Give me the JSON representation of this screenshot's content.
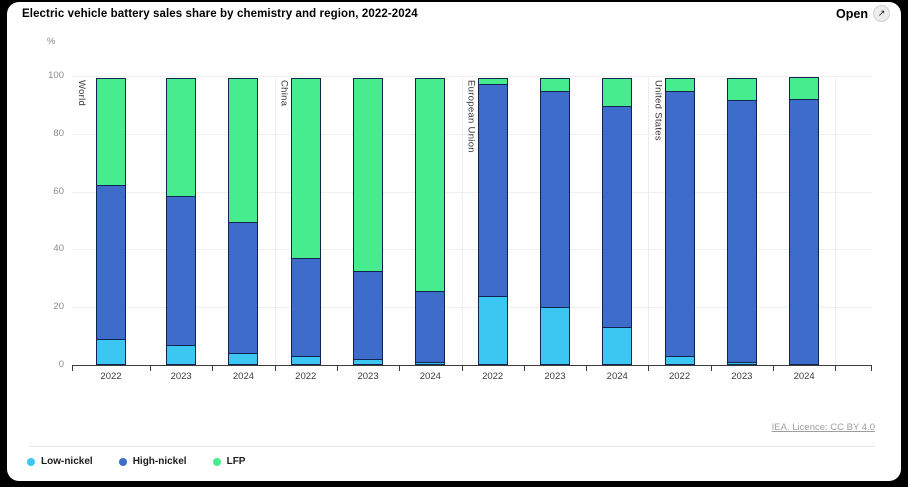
{
  "header": {
    "title": "Electric vehicle battery sales share by chemistry and region, 2022-2024",
    "open_label": "Open",
    "open_icon": "↗"
  },
  "chart_data": {
    "type": "bar",
    "stacked": true,
    "unit": "%",
    "ylim": [
      0,
      100
    ],
    "yticks": [
      0,
      20,
      40,
      60,
      80,
      100
    ],
    "grid": true,
    "legend_position": "bottom-left",
    "groups": [
      "World",
      "China",
      "European Union",
      "United States"
    ],
    "categories": [
      "2022",
      "2023",
      "2024",
      "2022",
      "2023",
      "2024",
      "2022",
      "2023",
      "2024",
      "2022",
      "2023",
      "2024"
    ],
    "series": [
      {
        "name": "Low-nickel",
        "color": "#3BC7F2",
        "values": [
          9,
          7,
          4,
          3,
          2,
          1,
          24,
          20,
          13,
          3,
          1,
          0
        ]
      },
      {
        "name": "High-nickel",
        "color": "#3D6CCB",
        "values": [
          53.5,
          52,
          46,
          34.5,
          31,
          25,
          73.5,
          75,
          77,
          92,
          91,
          92
        ]
      },
      {
        "name": "LFP",
        "color": "#46EC8E",
        "values": [
          37.5,
          41,
          50,
          62.5,
          67,
          74,
          2.5,
          5,
          10,
          5,
          8,
          8
        ]
      }
    ]
  },
  "footer": {
    "licence": "IEA. Licence: CC BY 4.0"
  }
}
